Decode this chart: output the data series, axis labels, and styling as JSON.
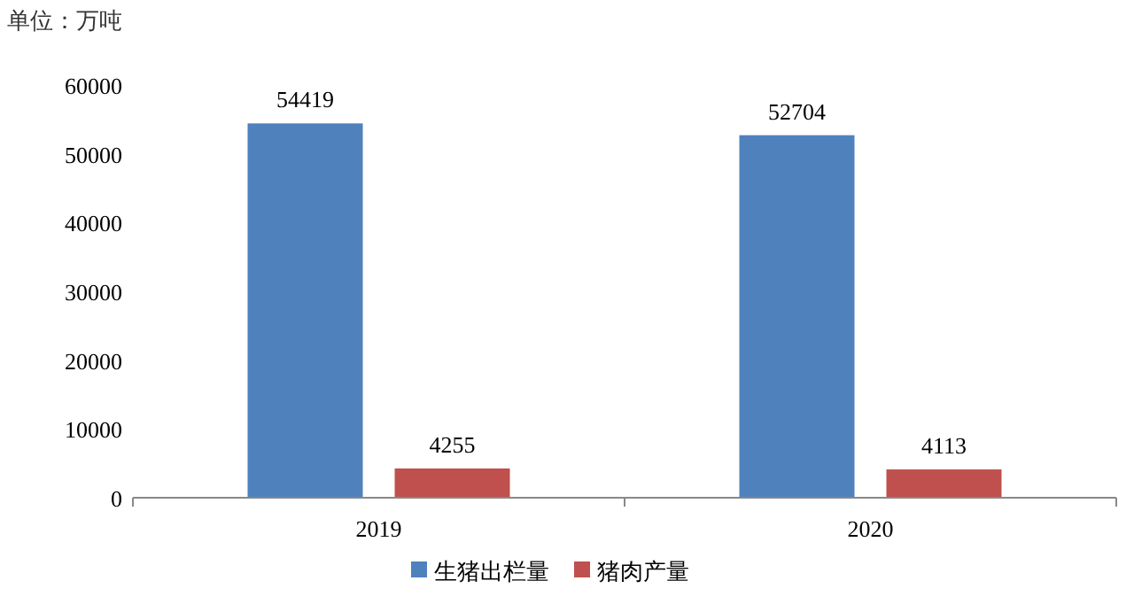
{
  "chart_data": {
    "type": "bar",
    "ylabel": "单位：万吨",
    "categories": [
      "2019",
      "2020"
    ],
    "series": [
      {
        "name": "生猪出栏量",
        "color": "#4f81bd",
        "values": [
          54419,
          52704
        ]
      },
      {
        "name": "猪肉产量",
        "color": "#c0504d",
        "values": [
          4255,
          4113
        ]
      }
    ],
    "ylim": [
      0,
      60000
    ],
    "yticks": [
      0,
      10000,
      20000,
      30000,
      40000,
      50000,
      60000
    ],
    "grid": false,
    "legend": "bottom",
    "data_labels": true
  }
}
